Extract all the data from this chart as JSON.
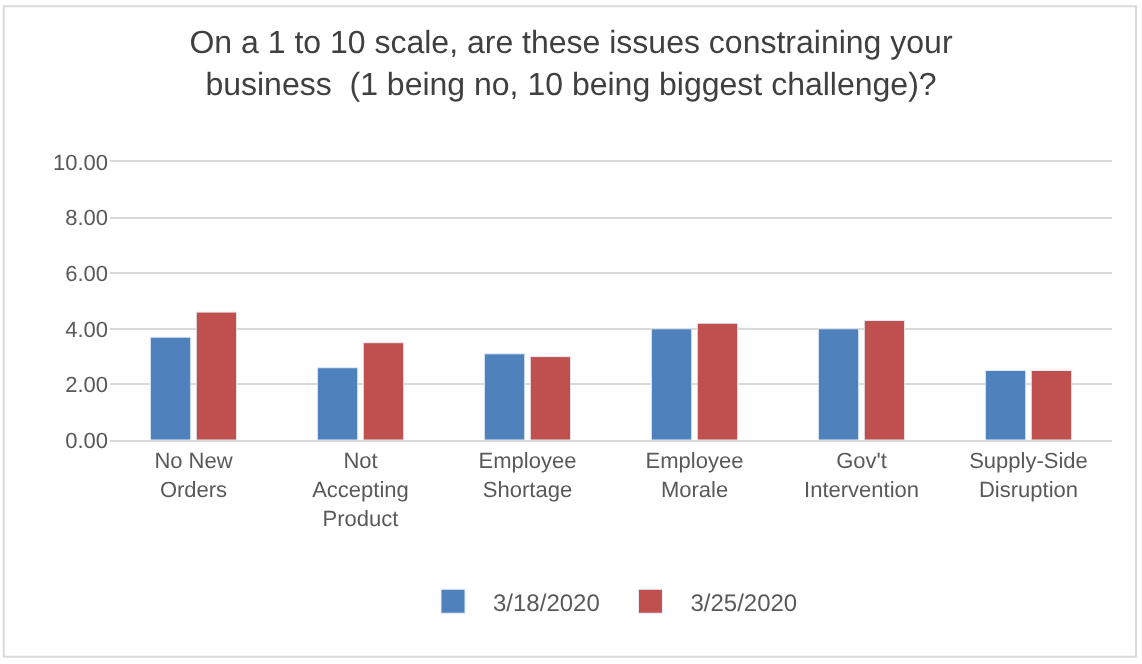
{
  "chart_data": {
    "type": "bar",
    "title": "On a 1 to 10 scale, are these issues constraining your\nbusiness  (1 being no, 10 being biggest challenge)?",
    "categories": [
      "No New\nOrders",
      "Not\nAccepting\nProduct",
      "Employee\nShortage",
      "Employee\nMorale",
      "Gov't\nIntervention",
      "Supply-Side\nDisruption"
    ],
    "series": [
      {
        "name": "3/18/2020",
        "color": "#4f81bd",
        "values": [
          3.7,
          2.6,
          3.1,
          4.0,
          4.0,
          2.5
        ]
      },
      {
        "name": "3/25/2020",
        "color": "#c0504d",
        "values": [
          4.6,
          3.5,
          3.0,
          4.2,
          4.3,
          2.5
        ]
      }
    ],
    "ylim": [
      0,
      10
    ],
    "yticks": [
      {
        "value": 0,
        "label": "0.00"
      },
      {
        "value": 2,
        "label": "2.00"
      },
      {
        "value": 4,
        "label": "4.00"
      },
      {
        "value": 6,
        "label": "6.00"
      },
      {
        "value": 8,
        "label": "8.00"
      },
      {
        "value": 10,
        "label": "10.00"
      }
    ],
    "grid": "y",
    "legend": "bottom"
  }
}
